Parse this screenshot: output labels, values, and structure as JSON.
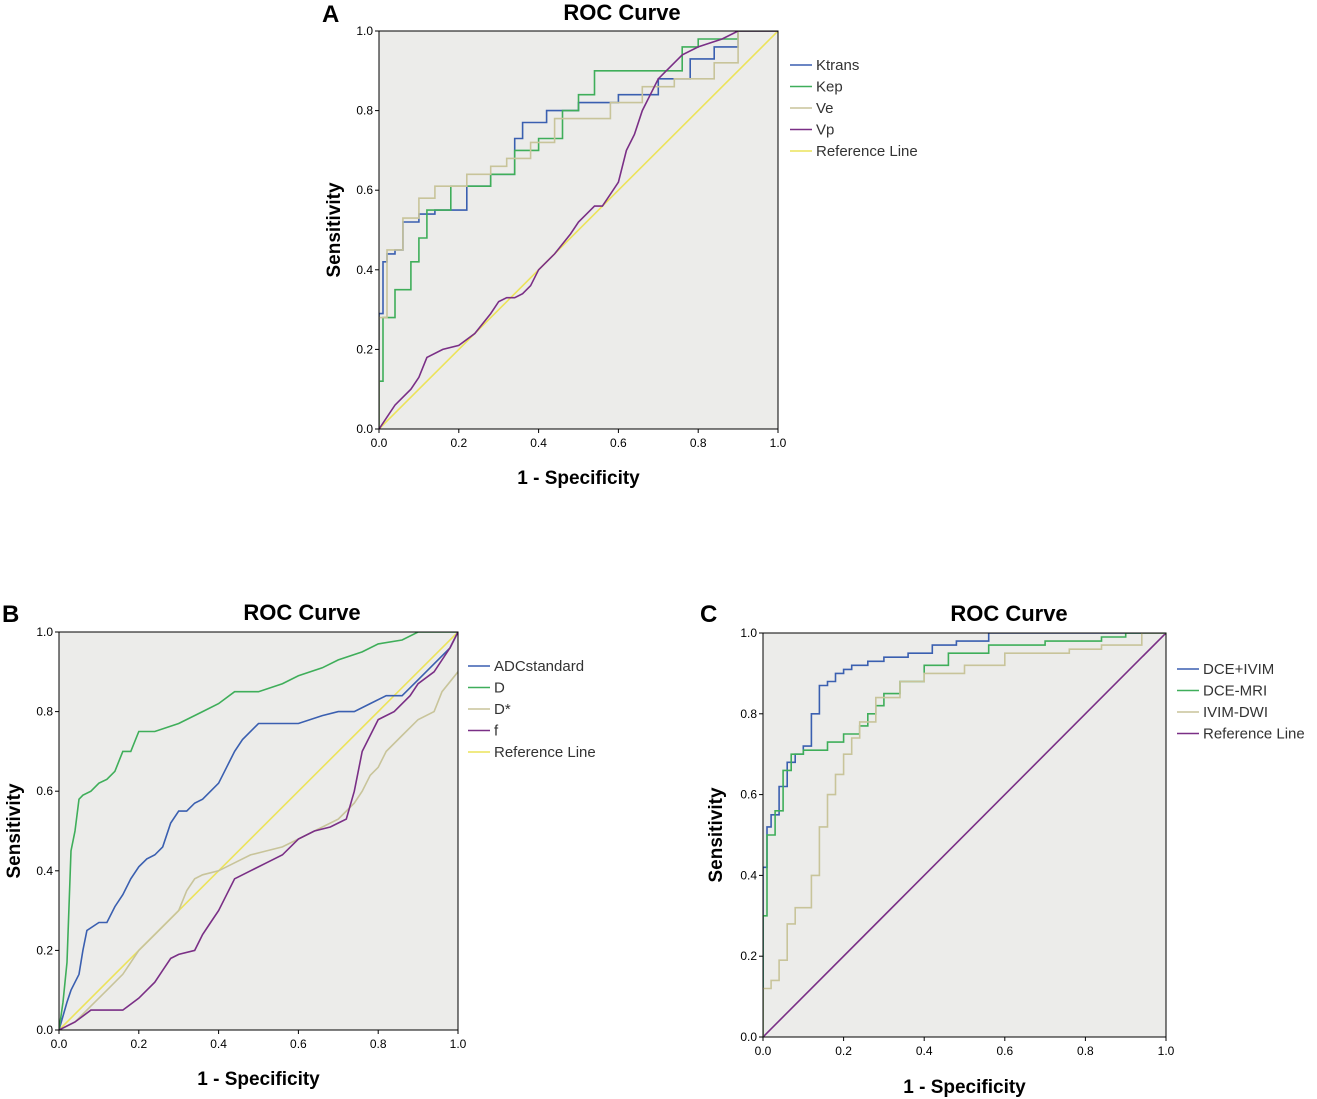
{
  "chart_data": [
    {
      "panel": "A",
      "type": "line",
      "title": "ROC Curve",
      "xlabel": "1 - Specificity",
      "ylabel": "Sensitivity",
      "xlim": [
        0,
        1
      ],
      "ylim": [
        0,
        1
      ],
      "ticks": [
        "0.0",
        "0.2",
        "0.4",
        "0.6",
        "0.8",
        "1.0"
      ],
      "legend_position": "right",
      "series": [
        {
          "name": "Ktrans",
          "color": "#3a5fb0",
          "x": [
            0,
            0,
            0.01,
            0.01,
            0.02,
            0.02,
            0.04,
            0.04,
            0.06,
            0.06,
            0.1,
            0.1,
            0.14,
            0.14,
            0.22,
            0.22,
            0.28,
            0.28,
            0.34,
            0.34,
            0.36,
            0.36,
            0.42,
            0.42,
            0.5,
            0.5,
            0.6,
            0.6,
            0.7,
            0.7,
            0.78,
            0.78,
            0.84,
            0.84,
            0.9,
            0.9,
            1.0
          ],
          "y": [
            0,
            0.29,
            0.29,
            0.42,
            0.42,
            0.44,
            0.44,
            0.45,
            0.45,
            0.52,
            0.52,
            0.54,
            0.54,
            0.55,
            0.55,
            0.61,
            0.61,
            0.64,
            0.64,
            0.73,
            0.73,
            0.77,
            0.77,
            0.8,
            0.8,
            0.82,
            0.82,
            0.84,
            0.84,
            0.88,
            0.88,
            0.93,
            0.93,
            0.96,
            0.96,
            1.0,
            1.0
          ]
        },
        {
          "name": "Kep",
          "color": "#3fae5a",
          "x": [
            0,
            0,
            0.01,
            0.01,
            0.04,
            0.04,
            0.06,
            0.06,
            0.08,
            0.08,
            0.1,
            0.1,
            0.12,
            0.12,
            0.18,
            0.18,
            0.28,
            0.28,
            0.34,
            0.34,
            0.4,
            0.4,
            0.46,
            0.46,
            0.5,
            0.5,
            0.54,
            0.54,
            0.76,
            0.76,
            0.8,
            0.8,
            0.86,
            0.86,
            0.9,
            0.9,
            1.0
          ],
          "y": [
            0,
            0.12,
            0.12,
            0.28,
            0.28,
            0.35,
            0.35,
            0.35,
            0.35,
            0.42,
            0.42,
            0.48,
            0.48,
            0.55,
            0.55,
            0.61,
            0.61,
            0.64,
            0.64,
            0.7,
            0.7,
            0.73,
            0.73,
            0.8,
            0.8,
            0.84,
            0.84,
            0.9,
            0.9,
            0.96,
            0.96,
            0.98,
            0.98,
            0.98,
            0.98,
            1.0,
            1.0
          ]
        },
        {
          "name": "Ve",
          "color": "#c8c49a",
          "x": [
            0,
            0,
            0.02,
            0.02,
            0.06,
            0.06,
            0.1,
            0.1,
            0.14,
            0.14,
            0.22,
            0.22,
            0.28,
            0.28,
            0.32,
            0.32,
            0.38,
            0.38,
            0.44,
            0.44,
            0.58,
            0.58,
            0.66,
            0.66,
            0.74,
            0.74,
            0.84,
            0.84,
            0.9,
            0.9,
            1.0
          ],
          "y": [
            0,
            0.28,
            0.28,
            0.45,
            0.45,
            0.53,
            0.53,
            0.58,
            0.58,
            0.61,
            0.61,
            0.64,
            0.64,
            0.66,
            0.66,
            0.68,
            0.68,
            0.72,
            0.72,
            0.78,
            0.78,
            0.82,
            0.82,
            0.86,
            0.86,
            0.88,
            0.88,
            0.92,
            0.92,
            1.0,
            1.0
          ]
        },
        {
          "name": "Vp",
          "color": "#7a2f86",
          "x": [
            0,
            0.02,
            0.04,
            0.06,
            0.08,
            0.1,
            0.12,
            0.16,
            0.2,
            0.24,
            0.28,
            0.3,
            0.32,
            0.34,
            0.36,
            0.38,
            0.4,
            0.44,
            0.48,
            0.5,
            0.52,
            0.54,
            0.56,
            0.58,
            0.6,
            0.62,
            0.64,
            0.66,
            0.68,
            0.7,
            0.72,
            0.74,
            0.76,
            0.8,
            0.86,
            0.9,
            1.0
          ],
          "y": [
            0,
            0.03,
            0.06,
            0.08,
            0.1,
            0.13,
            0.18,
            0.2,
            0.21,
            0.24,
            0.29,
            0.32,
            0.33,
            0.33,
            0.34,
            0.36,
            0.4,
            0.44,
            0.49,
            0.52,
            0.54,
            0.56,
            0.56,
            0.59,
            0.62,
            0.7,
            0.74,
            0.8,
            0.84,
            0.88,
            0.9,
            0.92,
            0.94,
            0.96,
            0.98,
            1.0,
            1.0
          ]
        },
        {
          "name": "Reference Line",
          "color": "#ece35a",
          "x": [
            0,
            1
          ],
          "y": [
            0,
            1
          ]
        }
      ]
    },
    {
      "panel": "B",
      "type": "line",
      "title": "ROC Curve",
      "xlabel": "1 - Specificity",
      "ylabel": "Sensitivity",
      "xlim": [
        0,
        1
      ],
      "ylim": [
        0,
        1
      ],
      "ticks": [
        "0.0",
        "0.2",
        "0.4",
        "0.6",
        "0.8",
        "1.0"
      ],
      "legend_position": "right",
      "series": [
        {
          "name": "ADCstandard",
          "color": "#3a5fb0",
          "x": [
            0,
            0.02,
            0.03,
            0.05,
            0.06,
            0.07,
            0.1,
            0.12,
            0.14,
            0.16,
            0.18,
            0.2,
            0.22,
            0.24,
            0.26,
            0.28,
            0.3,
            0.32,
            0.34,
            0.36,
            0.38,
            0.4,
            0.42,
            0.44,
            0.46,
            0.5,
            0.56,
            0.6,
            0.66,
            0.7,
            0.74,
            0.78,
            0.82,
            0.86,
            0.9,
            0.94,
            0.98,
            1.0
          ],
          "y": [
            0,
            0.07,
            0.1,
            0.14,
            0.2,
            0.25,
            0.27,
            0.27,
            0.31,
            0.34,
            0.38,
            0.41,
            0.43,
            0.44,
            0.46,
            0.52,
            0.55,
            0.55,
            0.57,
            0.58,
            0.6,
            0.62,
            0.66,
            0.7,
            0.73,
            0.77,
            0.77,
            0.77,
            0.79,
            0.8,
            0.8,
            0.82,
            0.84,
            0.84,
            0.88,
            0.92,
            0.96,
            1.0
          ]
        },
        {
          "name": "D",
          "color": "#3fae5a",
          "x": [
            0,
            0.01,
            0.02,
            0.03,
            0.04,
            0.05,
            0.06,
            0.08,
            0.1,
            0.12,
            0.14,
            0.16,
            0.18,
            0.2,
            0.24,
            0.3,
            0.36,
            0.4,
            0.44,
            0.5,
            0.56,
            0.6,
            0.66,
            0.7,
            0.76,
            0.8,
            0.86,
            0.9,
            0.96,
            1.0
          ],
          "y": [
            0,
            0.07,
            0.17,
            0.45,
            0.5,
            0.58,
            0.59,
            0.6,
            0.62,
            0.63,
            0.65,
            0.7,
            0.7,
            0.75,
            0.75,
            0.77,
            0.8,
            0.82,
            0.85,
            0.85,
            0.87,
            0.89,
            0.91,
            0.93,
            0.95,
            0.97,
            0.98,
            1.0,
            1.0,
            1.0
          ]
        },
        {
          "name": "D*",
          "color": "#c8c49a",
          "x": [
            0,
            0.04,
            0.08,
            0.12,
            0.16,
            0.2,
            0.24,
            0.28,
            0.3,
            0.32,
            0.34,
            0.36,
            0.4,
            0.44,
            0.48,
            0.52,
            0.56,
            0.6,
            0.64,
            0.7,
            0.74,
            0.76,
            0.78,
            0.8,
            0.82,
            0.86,
            0.9,
            0.94,
            0.96,
            1.0
          ],
          "y": [
            0,
            0.02,
            0.06,
            0.1,
            0.14,
            0.2,
            0.24,
            0.28,
            0.3,
            0.35,
            0.38,
            0.39,
            0.4,
            0.42,
            0.44,
            0.45,
            0.46,
            0.48,
            0.5,
            0.53,
            0.57,
            0.6,
            0.64,
            0.66,
            0.7,
            0.74,
            0.78,
            0.8,
            0.85,
            0.9
          ]
        },
        {
          "name": "f",
          "color": "#7a2f86",
          "x": [
            0,
            0.04,
            0.08,
            0.12,
            0.16,
            0.2,
            0.22,
            0.24,
            0.26,
            0.28,
            0.3,
            0.34,
            0.36,
            0.38,
            0.4,
            0.42,
            0.44,
            0.48,
            0.52,
            0.56,
            0.6,
            0.64,
            0.68,
            0.7,
            0.72,
            0.74,
            0.76,
            0.8,
            0.84,
            0.88,
            0.9,
            0.94,
            0.98,
            1.0
          ],
          "y": [
            0,
            0.02,
            0.05,
            0.05,
            0.05,
            0.08,
            0.1,
            0.12,
            0.15,
            0.18,
            0.19,
            0.2,
            0.24,
            0.27,
            0.3,
            0.34,
            0.38,
            0.4,
            0.42,
            0.44,
            0.48,
            0.5,
            0.51,
            0.52,
            0.53,
            0.6,
            0.7,
            0.78,
            0.8,
            0.84,
            0.87,
            0.9,
            0.96,
            1.0
          ]
        },
        {
          "name": "Reference Line",
          "color": "#ece35a",
          "x": [
            0,
            1
          ],
          "y": [
            0,
            1
          ]
        }
      ]
    },
    {
      "panel": "C",
      "type": "line",
      "title": "ROC Curve",
      "xlabel": "1 - Specificity",
      "ylabel": "Sensitivity",
      "xlim": [
        0,
        1
      ],
      "ylim": [
        0,
        1
      ],
      "ticks": [
        "0.0",
        "0.2",
        "0.4",
        "0.6",
        "0.8",
        "1.0"
      ],
      "legend_position": "right",
      "series": [
        {
          "name": "DCE+IVIM",
          "color": "#3a5fb0",
          "x": [
            0,
            0,
            0.01,
            0.01,
            0.02,
            0.02,
            0.04,
            0.04,
            0.06,
            0.06,
            0.08,
            0.08,
            0.1,
            0.1,
            0.12,
            0.12,
            0.14,
            0.14,
            0.16,
            0.16,
            0.18,
            0.18,
            0.2,
            0.2,
            0.22,
            0.22,
            0.26,
            0.26,
            0.3,
            0.3,
            0.36,
            0.36,
            0.42,
            0.42,
            0.48,
            0.48,
            0.56,
            0.56,
            0.7,
            0.7,
            1.0
          ],
          "y": [
            0,
            0.42,
            0.42,
            0.52,
            0.52,
            0.55,
            0.55,
            0.62,
            0.62,
            0.68,
            0.68,
            0.7,
            0.7,
            0.72,
            0.72,
            0.8,
            0.8,
            0.87,
            0.87,
            0.88,
            0.88,
            0.9,
            0.9,
            0.91,
            0.91,
            0.92,
            0.92,
            0.93,
            0.93,
            0.94,
            0.94,
            0.95,
            0.95,
            0.97,
            0.97,
            0.98,
            0.98,
            1.0,
            1.0,
            1.0,
            1.0
          ]
        },
        {
          "name": "DCE-MRI",
          "color": "#3fae5a",
          "x": [
            0,
            0,
            0.01,
            0.01,
            0.03,
            0.03,
            0.05,
            0.05,
            0.07,
            0.07,
            0.1,
            0.1,
            0.16,
            0.16,
            0.2,
            0.2,
            0.24,
            0.24,
            0.26,
            0.26,
            0.28,
            0.28,
            0.3,
            0.3,
            0.34,
            0.34,
            0.4,
            0.4,
            0.46,
            0.46,
            0.56,
            0.56,
            0.7,
            0.7,
            0.84,
            0.84,
            0.9,
            0.9,
            1.0
          ],
          "y": [
            0,
            0.3,
            0.3,
            0.5,
            0.5,
            0.56,
            0.56,
            0.66,
            0.66,
            0.7,
            0.7,
            0.71,
            0.71,
            0.73,
            0.73,
            0.75,
            0.75,
            0.77,
            0.77,
            0.8,
            0.8,
            0.82,
            0.82,
            0.85,
            0.85,
            0.88,
            0.88,
            0.92,
            0.92,
            0.95,
            0.95,
            0.97,
            0.97,
            0.98,
            0.98,
            0.99,
            0.99,
            1.0,
            1.0
          ]
        },
        {
          "name": "IVIM-DWI",
          "color": "#c8c49a",
          "x": [
            0,
            0,
            0.02,
            0.02,
            0.04,
            0.04,
            0.06,
            0.06,
            0.08,
            0.08,
            0.12,
            0.12,
            0.14,
            0.14,
            0.16,
            0.16,
            0.18,
            0.18,
            0.2,
            0.2,
            0.22,
            0.22,
            0.24,
            0.24,
            0.28,
            0.28,
            0.34,
            0.34,
            0.4,
            0.4,
            0.5,
            0.5,
            0.6,
            0.6,
            0.76,
            0.76,
            0.84,
            0.84,
            0.94,
            0.94,
            1.0
          ],
          "y": [
            0,
            0.12,
            0.12,
            0.14,
            0.14,
            0.19,
            0.19,
            0.28,
            0.28,
            0.32,
            0.32,
            0.4,
            0.4,
            0.52,
            0.52,
            0.6,
            0.6,
            0.65,
            0.65,
            0.7,
            0.7,
            0.74,
            0.74,
            0.78,
            0.78,
            0.84,
            0.84,
            0.88,
            0.88,
            0.9,
            0.9,
            0.92,
            0.92,
            0.95,
            0.95,
            0.96,
            0.96,
            0.97,
            0.97,
            1.0,
            1.0
          ]
        },
        {
          "name": "Reference Line",
          "color": "#7a2f86",
          "x": [
            0,
            1
          ],
          "y": [
            0,
            1
          ]
        }
      ]
    }
  ]
}
